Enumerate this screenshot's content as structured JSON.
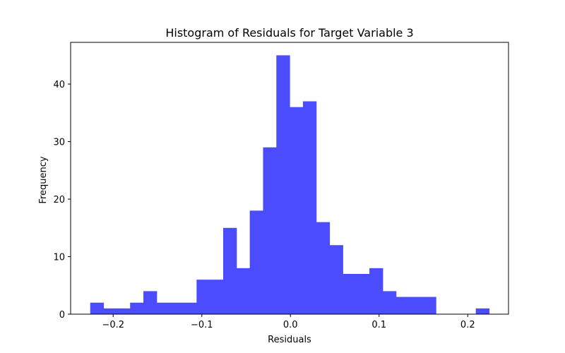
{
  "chart_data": {
    "type": "bar",
    "title": "Histogram of Residuals for Target Variable 3",
    "xlabel": "Residuals",
    "ylabel": "Frequency",
    "bin_edges": [
      -0.2259,
      -0.2109,
      -0.1959,
      -0.1809,
      -0.1659,
      -0.1509,
      -0.1359,
      -0.1209,
      -0.1059,
      -0.0909,
      -0.0759,
      -0.0609,
      -0.0459,
      -0.0309,
      -0.0159,
      -0.0009,
      0.0141,
      0.0291,
      0.0441,
      0.0591,
      0.0741,
      0.0891,
      0.1041,
      0.1191,
      0.1341,
      0.1491,
      0.1641,
      0.1791,
      0.1941,
      0.2091,
      0.2241
    ],
    "values": [
      2,
      1,
      1,
      2,
      4,
      2,
      2,
      2,
      6,
      6,
      15,
      8,
      18,
      29,
      45,
      36,
      37,
      16,
      12,
      7,
      7,
      8,
      4,
      3,
      3,
      3,
      0,
      0,
      0,
      1
    ],
    "bar_color": "#4c4cff",
    "xlim": [
      -0.248,
      0.246
    ],
    "ylim": [
      0,
      47.25
    ],
    "xticks": [
      -0.2,
      -0.1,
      0.0,
      0.1,
      0.2
    ],
    "xtick_labels": [
      "−0.2",
      "−0.1",
      "0.0",
      "0.1",
      "0.2"
    ],
    "yticks": [
      0,
      10,
      20,
      30,
      40
    ],
    "ytick_labels": [
      "0",
      "10",
      "20",
      "30",
      "40"
    ],
    "grid": false,
    "legend": "none"
  }
}
